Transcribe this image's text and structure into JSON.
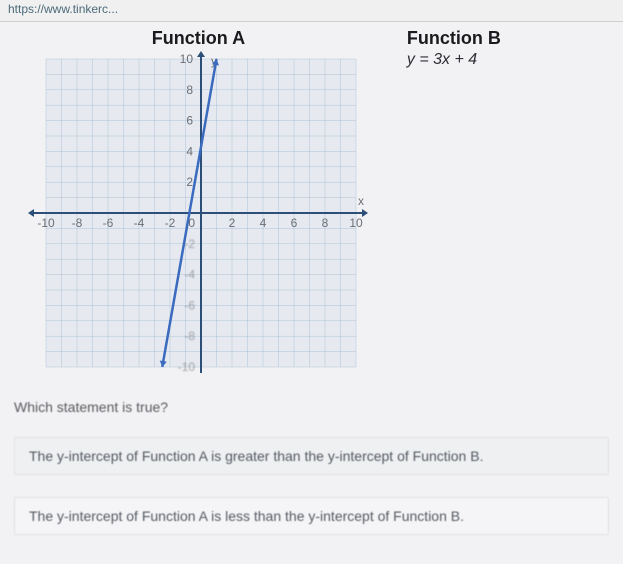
{
  "url": "https://www.tinkerc...",
  "functionA": {
    "title": "Function A"
  },
  "functionB": {
    "title": "Function B",
    "equation": "y = 3x + 4"
  },
  "graph": {
    "xmin": -10,
    "xmax": 10,
    "ymin": -10,
    "ymax": 10,
    "tick_step": 2,
    "x_ticks": [
      -10,
      -8,
      -6,
      -4,
      -2,
      0,
      2,
      4,
      6,
      8,
      10
    ],
    "y_ticks_pos": [
      2,
      4,
      6,
      8,
      10
    ],
    "y_ticks_neg": [
      -2,
      -4,
      -6,
      -8,
      -10
    ],
    "x_axis_label": "x",
    "y_axis_label": "y",
    "grid_color": "#8aa8c8",
    "bg_color": "#e6eaf0",
    "axis_color": "#2b4f78",
    "line_color": "#3a6bbf",
    "line_points": [
      [
        -2.5,
        -10
      ],
      [
        1,
        10
      ]
    ]
  },
  "question": "Which statement is true?",
  "choices": [
    "The y-intercept of Function A is greater than the y-intercept of Function B.",
    "The y-intercept of Function A is less than the y-intercept of Function B."
  ]
}
